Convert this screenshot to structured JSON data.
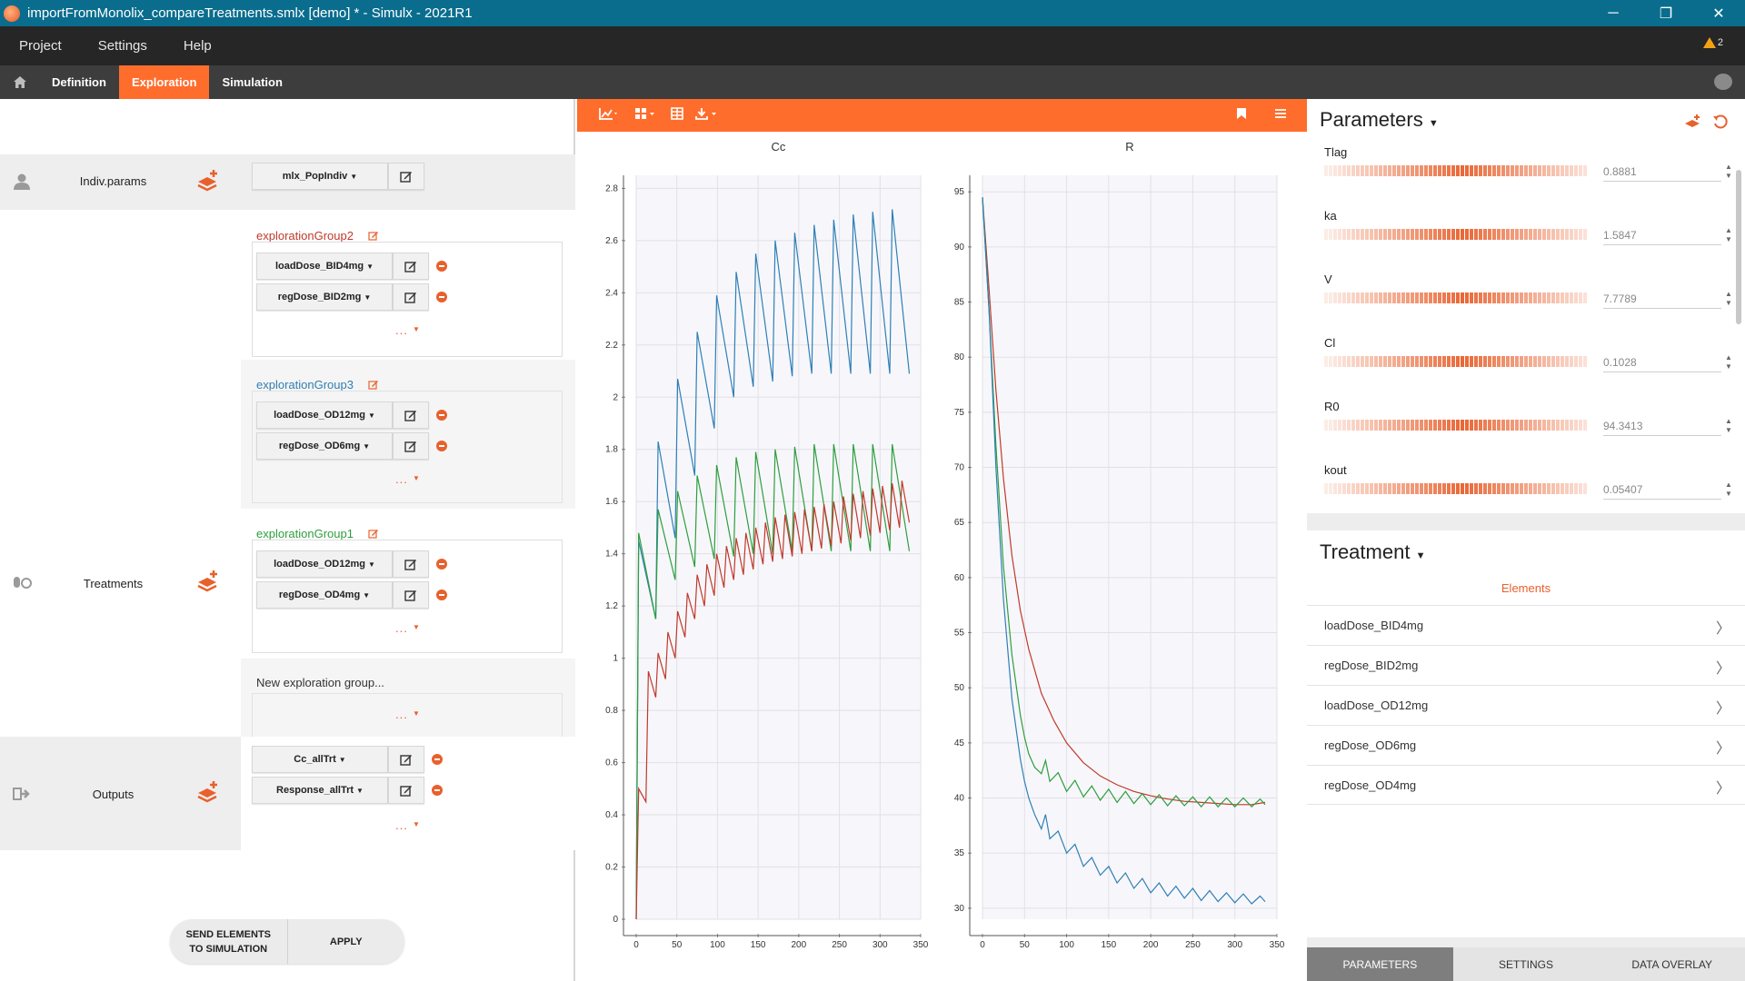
{
  "window": {
    "title": "importFromMonolix_compareTreatments.smlx [demo] * - Simulx - 2021R1",
    "minimize_label": "─",
    "restore_label": "❐",
    "close_label": "✕"
  },
  "menu": {
    "items": [
      "Project",
      "Settings",
      "Help"
    ],
    "warning_count": "2"
  },
  "tabs": {
    "items": [
      "Definition",
      "Exploration",
      "Simulation"
    ],
    "active": "Exploration"
  },
  "left": {
    "indiv": {
      "label": "Indiv.params",
      "dropdown": "mlx_PopIndiv"
    },
    "treatments": {
      "label": "Treatments",
      "groups": [
        {
          "name": "explorationGroup2",
          "color": "#c0392b",
          "items": [
            "loadDose_BID4mg",
            "regDose_BID2mg"
          ]
        },
        {
          "name": "explorationGroup3",
          "color": "#2f7fb5",
          "items": [
            "loadDose_OD12mg",
            "regDose_OD6mg"
          ]
        },
        {
          "name": "explorationGroup1",
          "color": "#2e9e3e",
          "items": [
            "loadDose_OD12mg",
            "regDose_OD4mg"
          ]
        }
      ],
      "new_group": "New exploration group...",
      "more": "..."
    },
    "outputs": {
      "label": "Outputs",
      "items": [
        "Cc_allTrt",
        "Response_allTrt"
      ]
    },
    "actions": {
      "send_line1": "SEND ELEMENTS",
      "send_line2": "TO SIMULATION",
      "apply": "APPLY"
    }
  },
  "chart_data": [
    {
      "type": "line",
      "title": "Cc",
      "xlim": [
        0,
        350
      ],
      "ylim": [
        0,
        2.85
      ],
      "xticks": [
        0,
        50,
        100,
        150,
        200,
        250,
        300,
        350
      ],
      "yticks": [
        0,
        0.2,
        0.4,
        0.6,
        0.8,
        1,
        1.2,
        1.4,
        1.6,
        1.8,
        2,
        2.2,
        2.4,
        2.6,
        2.8
      ],
      "grid": true,
      "series": [
        {
          "color": "#2f7fb5",
          "x": [
            0,
            3,
            24,
            27,
            48,
            51,
            72,
            75,
            96,
            99,
            120,
            123,
            144,
            147,
            168,
            171,
            192,
            195,
            216,
            219,
            240,
            243,
            264,
            267,
            288,
            291,
            312,
            315,
            336
          ],
          "y": [
            0,
            1.45,
            1.15,
            1.83,
            1.46,
            2.07,
            1.7,
            2.25,
            1.88,
            2.39,
            2.0,
            2.48,
            2.04,
            2.55,
            2.06,
            2.6,
            2.08,
            2.63,
            2.09,
            2.66,
            2.09,
            2.68,
            2.09,
            2.7,
            2.09,
            2.71,
            2.09,
            2.72,
            2.09
          ]
        },
        {
          "color": "#2e9e3e",
          "x": [
            0,
            3,
            24,
            27,
            48,
            51,
            72,
            75,
            96,
            99,
            120,
            123,
            144,
            147,
            168,
            171,
            192,
            195,
            216,
            219,
            240,
            243,
            264,
            267,
            288,
            291,
            312,
            315,
            336
          ],
          "y": [
            0,
            1.48,
            1.15,
            1.57,
            1.3,
            1.64,
            1.35,
            1.7,
            1.38,
            1.74,
            1.39,
            1.77,
            1.4,
            1.79,
            1.4,
            1.8,
            1.41,
            1.81,
            1.41,
            1.82,
            1.41,
            1.82,
            1.41,
            1.82,
            1.41,
            1.82,
            1.41,
            1.82,
            1.41
          ]
        },
        {
          "color": "#c0392b",
          "x": [
            0,
            3,
            12,
            15,
            24,
            27,
            36,
            39,
            48,
            51,
            60,
            63,
            72,
            75,
            84,
            87,
            96,
            99,
            108,
            111,
            120,
            123,
            132,
            135,
            144,
            147,
            156,
            159,
            168,
            171,
            180,
            183,
            192,
            195,
            204,
            207,
            216,
            219,
            228,
            231,
            240,
            243,
            252,
            255,
            264,
            267,
            276,
            279,
            288,
            291,
            300,
            303,
            312,
            315,
            324,
            327,
            336
          ],
          "y": [
            0,
            0.5,
            0.45,
            0.95,
            0.85,
            1.02,
            0.92,
            1.1,
            1.0,
            1.18,
            1.08,
            1.25,
            1.15,
            1.32,
            1.2,
            1.36,
            1.24,
            1.4,
            1.27,
            1.43,
            1.3,
            1.46,
            1.32,
            1.48,
            1.34,
            1.5,
            1.36,
            1.52,
            1.37,
            1.54,
            1.38,
            1.55,
            1.39,
            1.56,
            1.4,
            1.57,
            1.41,
            1.58,
            1.42,
            1.59,
            1.43,
            1.6,
            1.44,
            1.62,
            1.45,
            1.63,
            1.46,
            1.64,
            1.47,
            1.65,
            1.48,
            1.66,
            1.49,
            1.67,
            1.5,
            1.68,
            1.52
          ]
        }
      ]
    },
    {
      "type": "line",
      "title": "R",
      "xlim": [
        0,
        350
      ],
      "ylim": [
        29,
        96.5
      ],
      "xticks": [
        0,
        50,
        100,
        150,
        200,
        250,
        300,
        350
      ],
      "yticks": [
        30,
        35,
        40,
        45,
        50,
        55,
        60,
        65,
        70,
        75,
        80,
        85,
        90,
        95
      ],
      "grid": true,
      "series": [
        {
          "color": "#c0392b",
          "x": [
            0,
            8,
            16,
            25,
            35,
            45,
            55,
            70,
            85,
            100,
            120,
            140,
            160,
            180,
            200,
            220,
            240,
            260,
            280,
            300,
            320,
            336
          ],
          "y": [
            94.5,
            86,
            77,
            69,
            62,
            57,
            53.5,
            49.5,
            47,
            45,
            43.2,
            42,
            41.2,
            40.6,
            40.2,
            39.9,
            39.7,
            39.6,
            39.5,
            39.4,
            39.4,
            39.6
          ]
        },
        {
          "color": "#2e9e3e",
          "x": [
            0,
            8,
            16,
            25,
            35,
            45,
            50,
            55,
            62,
            70,
            75,
            80,
            90,
            100,
            110,
            120,
            130,
            140,
            150,
            160,
            170,
            180,
            190,
            200,
            210,
            220,
            230,
            240,
            250,
            260,
            270,
            280,
            290,
            300,
            310,
            320,
            330,
            336
          ],
          "y": [
            94.5,
            84,
            72,
            61,
            53,
            47.5,
            45.5,
            44,
            42.8,
            42.2,
            43.4,
            41.5,
            42.3,
            40.6,
            41.6,
            40.1,
            41.1,
            39.8,
            40.8,
            39.6,
            40.6,
            39.5,
            40.4,
            39.4,
            40.3,
            39.3,
            40.2,
            39.3,
            40.1,
            39.2,
            40.1,
            39.2,
            40.0,
            39.2,
            40.0,
            39.2,
            39.9,
            39.4
          ]
        },
        {
          "color": "#2f7fb5",
          "x": [
            0,
            8,
            16,
            25,
            35,
            45,
            50,
            55,
            62,
            70,
            75,
            80,
            90,
            100,
            110,
            120,
            130,
            140,
            150,
            160,
            170,
            180,
            190,
            200,
            210,
            220,
            230,
            240,
            250,
            260,
            270,
            280,
            290,
            300,
            310,
            320,
            330,
            336
          ],
          "y": [
            94.5,
            84,
            70,
            58,
            49,
            43.5,
            41.5,
            40,
            38.5,
            37.2,
            38.5,
            36.3,
            37.0,
            35.0,
            35.8,
            33.8,
            34.6,
            33.0,
            33.8,
            32.3,
            33.2,
            31.8,
            32.7,
            31.4,
            32.3,
            31.1,
            32.0,
            30.9,
            31.8,
            30.7,
            31.6,
            30.6,
            31.4,
            30.5,
            31.3,
            30.4,
            31.1,
            30.6
          ]
        }
      ]
    }
  ],
  "parameters": {
    "title": "Parameters",
    "items": [
      {
        "name": "Tlag",
        "value": "0.8881"
      },
      {
        "name": "ka",
        "value": "1.5847"
      },
      {
        "name": "V",
        "value": "7.7789"
      },
      {
        "name": "Cl",
        "value": "0.1028"
      },
      {
        "name": "R0",
        "value": "94.3413"
      },
      {
        "name": "kout",
        "value": "0.05407"
      }
    ]
  },
  "treatment": {
    "title": "Treatment",
    "elements_label": "Elements",
    "items": [
      "loadDose_BID4mg",
      "regDose_BID2mg",
      "loadDose_OD12mg",
      "regDose_OD6mg",
      "regDose_OD4mg"
    ]
  },
  "bottom_tabs": {
    "items": [
      "PARAMETERS",
      "SETTINGS",
      "DATA OVERLAY"
    ],
    "active": "PARAMETERS"
  },
  "colors": {
    "accent": "#ff6d2d",
    "titlebar": "#0a6d8e",
    "menubar": "#262626",
    "tabbar": "#3d3d3d"
  }
}
